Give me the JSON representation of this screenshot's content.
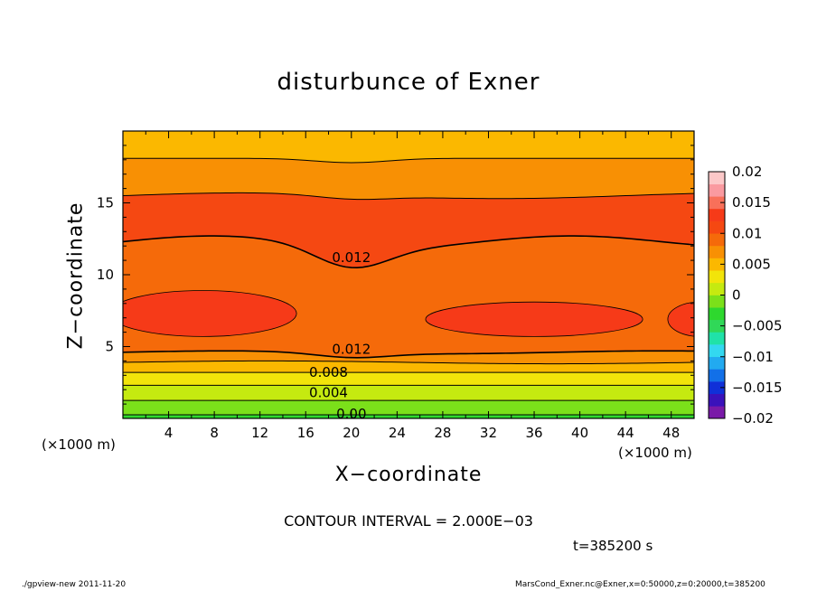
{
  "chart_data": {
    "type": "contour",
    "title": "disturbunce of Exner",
    "xlabel": "X−coordinate",
    "ylabel": "Z−coordinate",
    "x_unit": "(×1000 m)",
    "xlim": [
      0,
      50
    ],
    "ylim": [
      0,
      20
    ],
    "x_ticks": [
      4,
      8,
      12,
      16,
      20,
      24,
      28,
      32,
      36,
      40,
      44,
      48
    ],
    "y_ticks": [
      5,
      10,
      15
    ],
    "contour_labels": [
      {
        "text": "0.012",
        "x": 20,
        "z": 11.2
      },
      {
        "text": "0.012",
        "x": 20,
        "z": 4.8
      },
      {
        "text": "0.008",
        "x": 18,
        "z": 3.2
      },
      {
        "text": "0.004",
        "x": 18,
        "z": 1.8
      },
      {
        "text": "0.00",
        "x": 20,
        "z": 0.3
      }
    ],
    "colorbar": {
      "ticks": [
        "0.02",
        "0.015",
        "0.01",
        "0.005",
        "0",
        "−0.005",
        "−0.01",
        "−0.015",
        "−0.02"
      ],
      "range": [
        -0.02,
        0.02
      ],
      "colors": [
        "#7a1aa8",
        "#3a12bb",
        "#1030d8",
        "#1270e8",
        "#22aaf0",
        "#33d8f0",
        "#20e2a8",
        "#30d858",
        "#2ed82e",
        "#7be01a",
        "#c5ea10",
        "#f2e40a",
        "#fbb800",
        "#f89004",
        "#f56a0a",
        "#f54812",
        "#f63a18",
        "#f8705a",
        "#fa9aa0",
        "#fcc8c8"
      ]
    },
    "band_colors": [
      "#2ed82e",
      "#7be01a",
      "#c5ea10",
      "#f2e40a",
      "#fbb800",
      "#f89004",
      "#f56a0a",
      "#f54812",
      "#f63a18"
    ]
  },
  "annotations": {
    "contour_interval": "CONTOUR INTERVAL = 2.000E−03",
    "time": "t=385200 s",
    "footer_left": "./gpview-new   2011-11-20",
    "footer_right": "MarsCond_Exner.nc@Exner,x=0:50000,z=0:20000,t=385200"
  }
}
